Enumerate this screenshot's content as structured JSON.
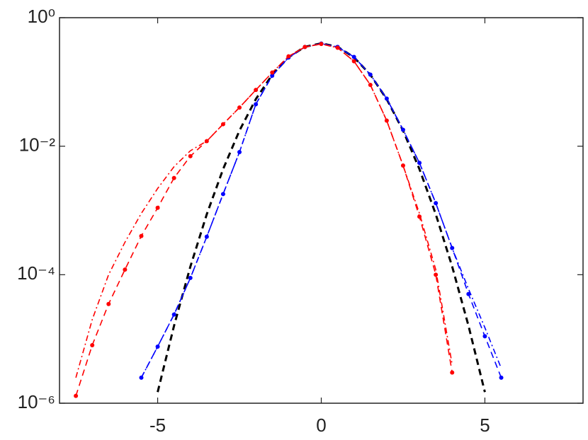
{
  "chart_data": {
    "type": "line",
    "log_y": true,
    "x": [
      -8,
      -7.5,
      -7,
      -6.5,
      -6,
      -5.5,
      -5,
      -4.5,
      -4,
      -3.5,
      -3,
      -2.5,
      -2,
      -1.5,
      -1,
      -0.5,
      0,
      0.5,
      1,
      1.5,
      2,
      2.5,
      3,
      3.5,
      4,
      4.5,
      5,
      5.5,
      6,
      6.5,
      7,
      7.5,
      8
    ],
    "xlim": [
      -8,
      8
    ],
    "xticks": [
      -5,
      0,
      5
    ],
    "ylim": [
      1e-06,
      1
    ],
    "yticks": [
      {
        "value": 1,
        "label": "10⁰"
      },
      {
        "value": 0.01,
        "label": "10⁻²"
      },
      {
        "value": 0.0001,
        "label": "10⁻⁴"
      },
      {
        "value": 1e-06,
        "label": "10⁻⁶"
      }
    ],
    "series": [
      {
        "color": "#000000",
        "line_style": "dashed",
        "markers": false,
        "values": [
          null,
          null,
          null,
          null,
          null,
          null,
          1.49e-06,
          1.6e-05,
          0.000134,
          0.00087,
          0.0044,
          0.0175,
          0.054,
          0.1295,
          0.242,
          0.352,
          0.399,
          0.352,
          0.242,
          0.1295,
          0.054,
          0.0175,
          0.0044,
          0.00087,
          0.000134,
          1.6e-05,
          1.49e-06,
          null,
          null,
          null,
          null,
          null,
          null
        ]
      },
      {
        "color": "#0000ff",
        "line_style": "dashdot",
        "markers": false,
        "values": [
          null,
          null,
          null,
          null,
          null,
          2.5e-06,
          7.6e-06,
          2.4e-05,
          8.9e-05,
          0.00039,
          0.0018,
          0.0081,
          0.045,
          0.125,
          0.24,
          0.35,
          0.395,
          0.35,
          0.245,
          0.13,
          0.055,
          0.018,
          0.0055,
          0.0013,
          0.00026,
          6e-05,
          1.5e-05,
          3.5e-06,
          null,
          null,
          null,
          null,
          null
        ]
      },
      {
        "color": "#0000ff",
        "line_style": "dashed",
        "markers": true,
        "values": [
          null,
          null,
          null,
          null,
          null,
          2.5e-06,
          7.6e-06,
          2.4e-05,
          8.9e-05,
          0.00039,
          0.0018,
          0.0081,
          0.045,
          0.125,
          0.24,
          0.35,
          0.395,
          0.35,
          0.245,
          0.13,
          0.055,
          0.018,
          0.0055,
          0.0013,
          0.00026,
          5e-05,
          1.1e-05,
          2.5e-06,
          null,
          null,
          null,
          null,
          null
        ]
      },
      {
        "color": "#ff0000",
        "line_style": "dashdot",
        "markers": false,
        "values": [
          null,
          2.5e-06,
          2e-05,
          0.0001,
          0.00032,
          0.0009,
          0.0022,
          0.0048,
          0.0085,
          0.012,
          0.022,
          0.04,
          0.075,
          0.14,
          0.25,
          0.35,
          0.39,
          0.34,
          0.21,
          0.09,
          0.025,
          0.005,
          0.0009,
          0.00012,
          4e-06,
          null,
          null,
          null,
          null,
          null,
          null,
          null,
          null
        ]
      },
      {
        "color": "#ff0000",
        "line_style": "dashed",
        "markers": true,
        "values": [
          null,
          1.3e-06,
          8e-06,
          3.5e-05,
          0.00012,
          0.0004,
          0.0011,
          0.0032,
          0.007,
          0.012,
          0.022,
          0.04,
          0.075,
          0.14,
          0.25,
          0.35,
          0.39,
          0.34,
          0.21,
          0.09,
          0.025,
          0.005,
          0.0008,
          0.0001,
          3e-06,
          null,
          null,
          null,
          null,
          null,
          null,
          null,
          null
        ]
      }
    ]
  }
}
